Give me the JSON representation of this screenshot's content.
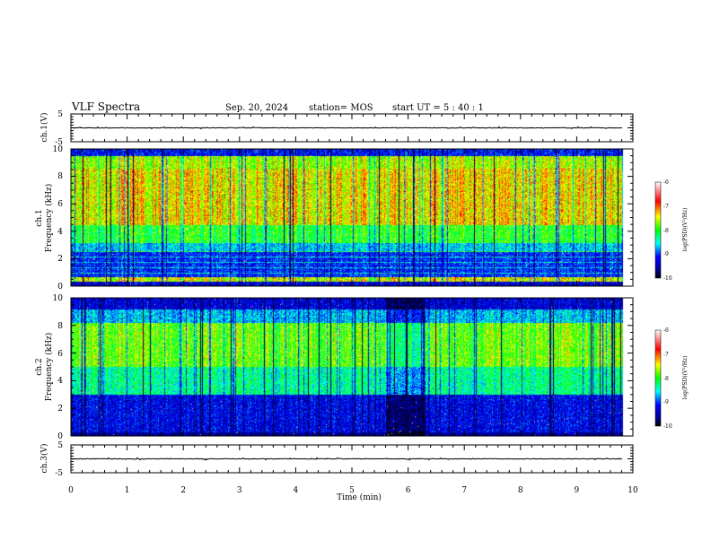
{
  "header": {
    "title": "VLF Spectra",
    "date": "Sep. 20, 2024",
    "station": "station= MOS",
    "start": "start  UT  =   5  : 40 : 1"
  },
  "chart_data": [
    {
      "type": "line",
      "ylabel": "ch.1(V)",
      "xlim": [
        0,
        10
      ],
      "ylim": [
        -5,
        5
      ],
      "ytick_labels": [
        "5",
        "-5"
      ],
      "trace_value": 0
    },
    {
      "type": "heatmap",
      "ylabel_channel": "ch.1",
      "ylabel": "Frequency (kHz)",
      "xlim": [
        0,
        10
      ],
      "ylim": [
        0,
        10
      ],
      "ytick_labels": [
        "0",
        "2",
        "4",
        "6",
        "8",
        "10"
      ],
      "data_end_min": 9.82,
      "colorbar": {
        "label": "log(PSD)(V²/Hz)",
        "range": [
          -10,
          -6
        ],
        "tick_labels": [
          "-6",
          "-7",
          "-8",
          "-9",
          "-10"
        ]
      }
    },
    {
      "type": "heatmap",
      "ylabel_channel": "ch.2",
      "ylabel": "Frequency (kHz)",
      "xlim": [
        0,
        10
      ],
      "ylim": [
        0,
        10
      ],
      "ytick_labels": [
        "0",
        "2",
        "4",
        "6",
        "8",
        "10"
      ],
      "data_end_min": 9.82,
      "colorbar": {
        "label": "log(PSD)(V²/Hz)",
        "range": [
          -10,
          -6
        ],
        "tick_labels": [
          "-6",
          "-7",
          "-8",
          "-9",
          "-10"
        ]
      }
    },
    {
      "type": "line",
      "ylabel": "ch.3(V)",
      "xlim": [
        0,
        10
      ],
      "ylim": [
        -5,
        5
      ],
      "ytick_labels": [
        "5",
        "-5"
      ],
      "trace_value": 0,
      "xlabel": "Time (min)",
      "xtick_labels": [
        "0",
        "1",
        "2",
        "3",
        "4",
        "5",
        "6",
        "7",
        "8",
        "9",
        "10"
      ]
    }
  ],
  "colors": {
    "colormap": [
      "#000000",
      "#00008b",
      "#0000ff",
      "#00ffff",
      "#00ff00",
      "#ffff00",
      "#ff0000",
      "#ffffff"
    ]
  }
}
